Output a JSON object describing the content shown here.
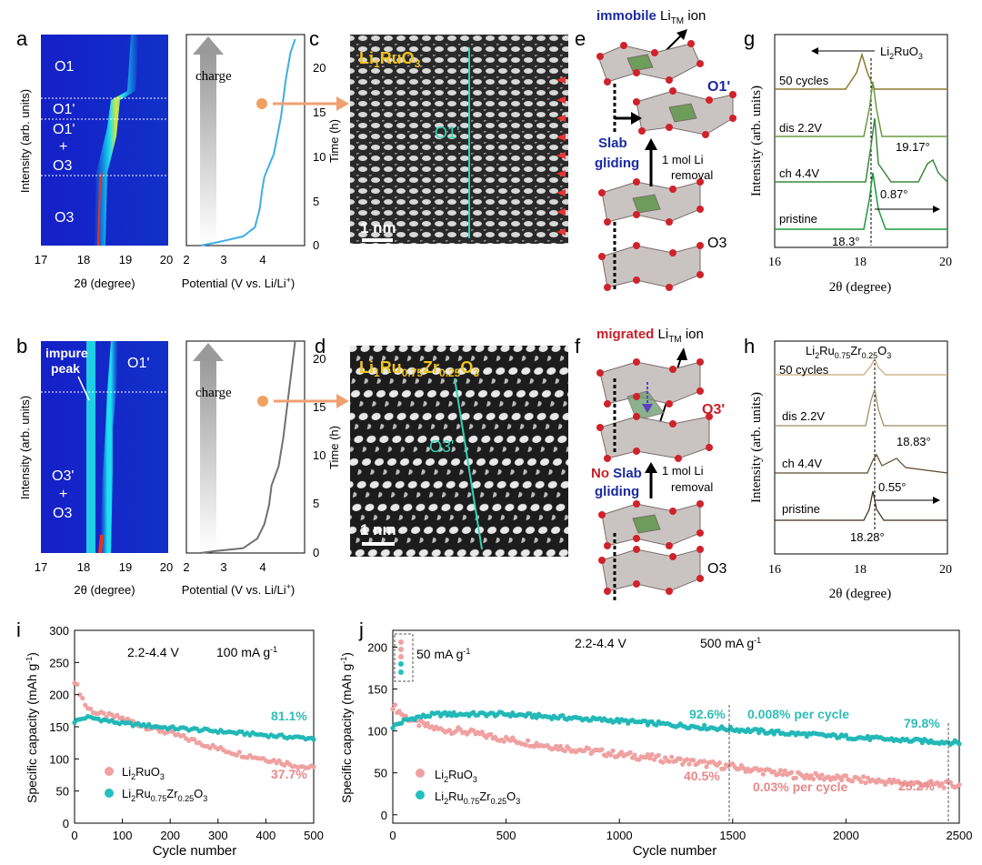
{
  "panels": {
    "a": {
      "letter": "a",
      "xlabel": "2θ (degree)",
      "ylabel": "Intensity (arb. units)",
      "xticks": [
        "17",
        "18",
        "19",
        "20"
      ],
      "phases": [
        "O1",
        "O1'",
        "O1'",
        "+",
        "O3",
        "O3"
      ],
      "x_range": [
        17,
        20
      ]
    },
    "a_ec": {
      "xlabel": "Potential (V vs. Li/Li",
      "xlabel_sup": "+",
      "xlabel_end": ")",
      "ylabel": "Time (h)",
      "xticks": [
        "2",
        "3",
        "4"
      ],
      "yticks": [
        "0",
        "5",
        "10",
        "15",
        "20"
      ],
      "arrow_label": "charge"
    },
    "b": {
      "letter": "b",
      "xlabel": "2θ (degree)",
      "ylabel": "Intensity (arb. units)",
      "xticks": [
        "17",
        "18",
        "19",
        "20"
      ],
      "phases": [
        "impure",
        "peak",
        "O1'",
        "O3'",
        "+",
        "O3"
      ]
    },
    "b_ec": {
      "xlabel": "Potential (V vs. Li/Li",
      "xlabel_sup": "+",
      "xlabel_end": ")",
      "ylabel": "Time (h)",
      "xticks": [
        "2",
        "3",
        "4"
      ],
      "yticks": [
        "0",
        "5",
        "10",
        "15",
        "20"
      ],
      "arrow_label": "charge"
    },
    "c": {
      "letter": "c",
      "formula": [
        "Li",
        "1",
        "RuO",
        "3"
      ],
      "phase": "O1'",
      "scale": "1 nm"
    },
    "d": {
      "letter": "d",
      "formula": [
        "Li",
        "1",
        "Ru",
        "0.75",
        "Zr",
        "0.25",
        "O",
        "3"
      ],
      "phase": "O3'",
      "scale": "1 nm"
    },
    "e": {
      "letter": "e",
      "top_bold": "immobile",
      "top_rest": " Li",
      "top_sub": "TM",
      "top_end": " ion",
      "phase_top": "O1'",
      "mech1": "Slab",
      "mech2": "gliding",
      "removal1": "1 mol Li",
      "removal2": "removal",
      "phase_bottom": "O3"
    },
    "f": {
      "letter": "f",
      "top_bold": "migrated",
      "top_rest": " Li",
      "top_sub": "TM",
      "top_end": " ion",
      "phase_top": "O3'",
      "mech1a": "No",
      "mech1b": " Slab",
      "mech2": "gliding",
      "removal1": "1 mol Li",
      "removal2": "removal",
      "phase_bottom": "O3"
    },
    "g": {
      "letter": "g",
      "compound": [
        "Li",
        "2",
        "RuO",
        "3"
      ],
      "ylabel": "Intensity (arb. units)",
      "xlabel": "2θ (degree)",
      "xticks": [
        "16",
        "18",
        "20"
      ],
      "traces": [
        "50 cycles",
        "dis 2.2V",
        "ch 4.4V",
        "pristine"
      ],
      "ann": [
        "19.17°",
        "0.87°",
        "18.3°"
      ]
    },
    "h": {
      "letter": "h",
      "compound": [
        "Li",
        "2",
        "Ru",
        "0.75",
        "Zr",
        "0.25",
        "O",
        "3"
      ],
      "ylabel": "Intensity (arb. units)",
      "xlabel": "2θ (degree)",
      "xticks": [
        "16",
        "18",
        "20"
      ],
      "traces": [
        "50 cycles",
        "dis 2.2V",
        "ch 4.4V",
        "pristine"
      ],
      "ann": [
        "18.83°",
        "0.55°",
        "18.28°"
      ]
    },
    "i": {
      "letter": "i",
      "cond1": "2.2-4.4 V",
      "cond2": "100 mA g",
      "cond2_sup": "-1",
      "ylabel": "Specific capacity (mAh g",
      "ylabel_sup": "-1",
      "ylabel_end": ")",
      "xlabel": "Cycle number",
      "xticks": [
        "0",
        "100",
        "200",
        "300",
        "400",
        "500"
      ],
      "yticks": [
        "0",
        "50",
        "100",
        "150",
        "200",
        "250",
        "300"
      ],
      "ret1": "81.1%",
      "ret2": "37.7%",
      "leg1": [
        "Li",
        "2",
        "RuO",
        "3"
      ],
      "leg2": [
        "Li",
        "2",
        "Ru",
        "0.75",
        "Zr",
        "0.25",
        "O",
        "3"
      ]
    },
    "j": {
      "letter": "j",
      "cond1": "2.2-4.4 V",
      "cond2": "500 mA g",
      "cond2_sup": "-1",
      "cond3": "50 mA g",
      "cond3_sup": "-1",
      "ylabel": "Specific capacity (mAh g",
      "ylabel_sup": "-1",
      "ylabel_end": ")",
      "xlabel": "Cycle number",
      "xticks": [
        "0",
        "500",
        "1000",
        "1500",
        "2000",
        "2500"
      ],
      "yticks": [
        "0",
        "50",
        "100",
        "150",
        "200"
      ],
      "a1": "92.6%",
      "a2": "0.008%  per cycle",
      "a3": "79.8%",
      "a4": "40.5%",
      "a5": "0.03% per cycle",
      "a6": "25.2%",
      "leg1": [
        "Li",
        "2",
        "RuO",
        "3"
      ],
      "leg2": [
        "Li",
        "2",
        "Ru",
        "0.75",
        "Zr",
        "0.25",
        "O",
        "3"
      ]
    }
  },
  "chart_data": [
    {
      "type": "line",
      "panel": "i",
      "x": [
        0,
        25,
        50,
        100,
        150,
        200,
        250,
        300,
        350,
        400,
        450,
        500
      ],
      "series": [
        {
          "name": "Li2RuO3",
          "values": [
            222,
            180,
            170,
            163,
            150,
            140,
            128,
            116,
            107,
            100,
            92,
            85
          ]
        },
        {
          "name": "Li2Ru0.75Zr0.25O3",
          "values": [
            158,
            165,
            162,
            155,
            152,
            148,
            146,
            143,
            140,
            137,
            134,
            132
          ]
        }
      ],
      "xlim": [
        0,
        500
      ],
      "ylim": [
        0,
        300
      ]
    },
    {
      "type": "line",
      "panel": "j",
      "x": [
        0,
        50,
        100,
        200,
        300,
        500,
        750,
        1000,
        1250,
        1500,
        1750,
        2000,
        2250,
        2500
      ],
      "series": [
        {
          "name": "Li2RuO3",
          "values": [
            130,
            118,
            110,
            102,
            100,
            90,
            80,
            72,
            65,
            57,
            48,
            43,
            38,
            35
          ]
        },
        {
          "name": "Li2Ru0.75Zr0.25O3",
          "values": [
            105,
            112,
            116,
            120,
            120,
            120,
            116,
            112,
            107,
            102,
            97,
            93,
            89,
            86
          ]
        }
      ],
      "xlim": [
        0,
        2500
      ],
      "ylim": [
        -10,
        220
      ]
    },
    {
      "type": "line",
      "panel": "a_ec",
      "x": [
        2.3,
        2.6,
        3.2,
        3.45,
        3.55,
        3.6,
        3.65,
        3.85,
        4.0,
        4.1,
        4.2,
        4.3
      ],
      "values": [
        0,
        0.3,
        1,
        2,
        4,
        6,
        7.5,
        10,
        14,
        18,
        21,
        22.5
      ],
      "xlim": [
        2,
        4.5
      ],
      "ylim": [
        0,
        23
      ]
    },
    {
      "type": "line",
      "panel": "b_ec",
      "x": [
        2.3,
        2.6,
        3.2,
        3.5,
        3.65,
        3.75,
        3.8,
        3.95,
        4.05,
        4.15,
        4.25,
        4.3
      ],
      "values": [
        0,
        0.2,
        0.5,
        1.5,
        3,
        5,
        7,
        9,
        12,
        16,
        20,
        22
      ],
      "xlim": [
        2,
        4.5
      ],
      "ylim": [
        0,
        22
      ]
    }
  ]
}
